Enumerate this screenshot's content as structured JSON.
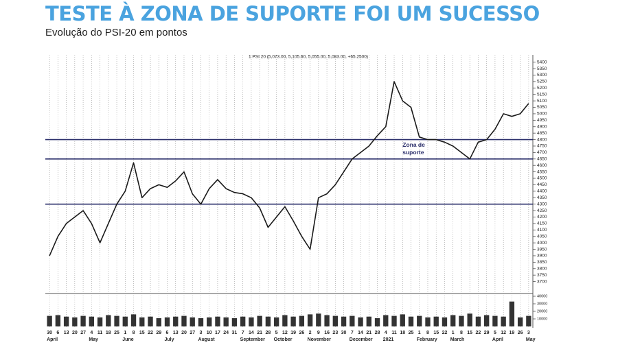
{
  "chart_data": {
    "type": "line",
    "title": "TESTE À ZONA DE SUPORTE FOI UM SUCESSO",
    "subtitle": "Evolução do PSI-20 em pontos",
    "categories": [
      "30",
      "6",
      "13",
      "20",
      "27",
      "4",
      "11",
      "18",
      "25",
      "1",
      "8",
      "15",
      "22",
      "29",
      "6",
      "13",
      "20",
      "27",
      "3",
      "10",
      "17",
      "24",
      "31",
      "7",
      "14",
      "21",
      "28",
      "5",
      "12",
      "19",
      "26",
      "2",
      "9",
      "16",
      "23",
      "30",
      "7",
      "14",
      "21",
      "28",
      "4",
      "11",
      "18",
      "25",
      "1",
      "8",
      "15",
      "22",
      "1",
      "8",
      "15",
      "22",
      "29",
      "5",
      "12",
      "19",
      "26",
      "3"
    ],
    "month_labels": [
      "April",
      null,
      null,
      null,
      null,
      "May",
      null,
      null,
      null,
      "June",
      null,
      null,
      null,
      null,
      "July",
      null,
      null,
      null,
      "August",
      null,
      null,
      null,
      null,
      "September",
      null,
      null,
      null,
      "October",
      null,
      null,
      null,
      "November",
      null,
      null,
      null,
      null,
      "December",
      null,
      null,
      null,
      "2021",
      null,
      null,
      null,
      "February",
      null,
      null,
      null,
      "March",
      null,
      null,
      null,
      null,
      "April",
      null,
      null,
      null,
      "May"
    ],
    "series": [
      {
        "name": "1 PSI 20 (5,073.00, 5,105.60, 5,055.00, 5,083.00, +65.2500)",
        "color": "#1a1a1a",
        "values": [
          3900,
          4050,
          4150,
          4200,
          4250,
          4150,
          4000,
          4150,
          4300,
          4400,
          4620,
          4350,
          4420,
          4450,
          4430,
          4480,
          4550,
          4380,
          4300,
          4420,
          4490,
          4420,
          4390,
          4380,
          4350,
          4270,
          4120,
          4200,
          4280,
          4170,
          4050,
          3950,
          4350,
          4380,
          4450,
          4550,
          4650,
          4700,
          4750,
          4830,
          4900,
          5250,
          5100,
          5050,
          4820,
          4800,
          4800,
          4780,
          4750,
          4700,
          4650,
          4780,
          4800,
          4880,
          5000,
          4980,
          5000,
          5080
        ]
      }
    ],
    "ylim": [
      3650,
      5430
    ],
    "yticks": [
      3700,
      3750,
      3800,
      3850,
      3900,
      3950,
      4000,
      4050,
      4100,
      4150,
      4200,
      4250,
      4300,
      4350,
      4400,
      4450,
      4500,
      4550,
      4600,
      4650,
      4700,
      4750,
      4800,
      4850,
      4900,
      4950,
      5000,
      5050,
      5100,
      5150,
      5200,
      5250,
      5300,
      5350,
      5400
    ],
    "support_levels": [
      4300,
      4650,
      4800
    ],
    "support_color": "#2b2f6b",
    "annotation": [
      "Zona de",
      "suporte"
    ],
    "volume": {
      "color": "#333333",
      "ylim": [
        0,
        40000
      ],
      "yticks": [
        10000,
        20000,
        30000,
        40000
      ],
      "values": [
        14000,
        15000,
        13000,
        12000,
        14000,
        13000,
        12000,
        15000,
        14000,
        13000,
        16000,
        12000,
        13000,
        11000,
        12000,
        13000,
        14000,
        12000,
        11000,
        12000,
        13000,
        12000,
        11000,
        13000,
        12000,
        14000,
        13000,
        12000,
        15000,
        13000,
        14000,
        16000,
        17000,
        15000,
        14000,
        13000,
        14000,
        12000,
        13000,
        11000,
        15000,
        14000,
        16000,
        13000,
        14000,
        12000,
        13000,
        12000,
        15000,
        14000,
        17000,
        13000,
        15000,
        14000,
        13000,
        33000,
        12000,
        14000
      ]
    },
    "grid": true
  }
}
